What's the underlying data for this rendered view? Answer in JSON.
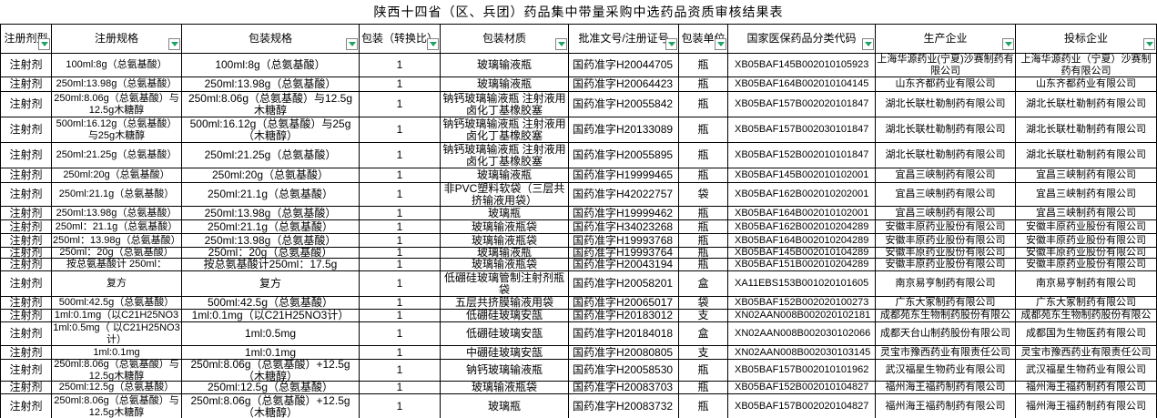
{
  "title": "陕西十四省（区、兵团）药品集中带量采购中选药品资质审核结果表",
  "columns": [
    {
      "label": "注册剂型"
    },
    {
      "label": "注册规格"
    },
    {
      "label": "包装规格"
    },
    {
      "label": "包装（转换比）"
    },
    {
      "label": "包装材质"
    },
    {
      "label": "批准文号/注册证号"
    },
    {
      "label": "包装单位"
    },
    {
      "label": "国家医保药品分类代码"
    },
    {
      "label": "生产企业"
    },
    {
      "label": "投标企业"
    }
  ],
  "icons": {
    "header_filter": "filter-dropdown-arrow"
  },
  "colors": {
    "filter_arrow": "#1fa463",
    "grid_line": "#000000",
    "text": "#000000",
    "background": "#ffffff"
  },
  "rows": [
    {
      "cells": [
        "注射剂",
        "100ml:8g（总氨基酸）",
        "100ml:8g（总氨基酸）",
        "1",
        "玻璃输液瓶",
        "国药准字H20044705",
        "瓶",
        "XB05BAF145B002010105923",
        "上海华源药业(宁夏)沙赛制药有限公司",
        "上海华源药业（宁夏）沙赛制药有限公司"
      ]
    },
    {
      "cells": [
        "注射剂",
        "250ml:13.98g（总氨基酸）",
        "250ml:13.98g（总氨基酸）",
        "1",
        "玻璃输液瓶",
        "国药准字H20064423",
        "瓶",
        "XB05BAF164B002010104145",
        "山东齐都药业有限公司",
        "山东齐都药业有限公司"
      ]
    },
    {
      "cells": [
        "注射剂",
        "250ml:8.06g（总氨基酸）与12.5g木糖醇",
        "250ml:8.06g（总氨基酸）与12.5g木糖醇",
        "1",
        "钠钙玻璃输液瓶 注射液用卤化丁基橡胶塞",
        "国药准字H20055842",
        "瓶",
        "XB05BAF157B002020101847",
        "湖北长联杜勒制药有限公司",
        "湖北长联杜勒制药有限公司"
      ]
    },
    {
      "cells": [
        "注射剂",
        "500ml:16.12g（总氨基酸）与25g木糖醇",
        "500ml:16.12g（总氨基酸）与25g（木糖醇）",
        "1",
        "钠钙玻璃输液瓶 注射液用卤化丁基橡胶塞",
        "国药准字H20133089",
        "瓶",
        "XB05BAF157B002030101847",
        "湖北长联杜勒制药有限公司",
        "湖北长联杜勒制药有限公司"
      ]
    },
    {
      "cells": [
        "注射剂",
        "250ml:21.25g（总氨基酸）",
        "250ml:21.25g（总氨基酸）",
        "1",
        "钠钙玻璃输液瓶 注射液用卤化丁基橡胶塞",
        "国药准字H20055895",
        "瓶",
        "XB05BAF152B002010101847",
        "湖北长联杜勒制药有限公司",
        "湖北长联杜勒制药有限公司"
      ]
    },
    {
      "cells": [
        "注射剂",
        "250ml:20g（总氨基酸）",
        "250ml:20g（总氨基酸）",
        "1",
        "玻璃输液瓶",
        "国药准字H19999465",
        "瓶",
        "XB05BAF145B002010102001",
        "宜昌三峡制药有限公司",
        "宜昌三峡制药有限公司"
      ]
    },
    {
      "cells": [
        "注射剂",
        "250ml:21.1g（总氨基酸）",
        "250ml:21.1g（总氨基酸）",
        "1",
        "非PVC塑料软袋（三层共挤输液用袋）",
        "国药准字H42022757",
        "袋",
        "XB05BAF162B002010202001",
        "宜昌三峡制药有限公司",
        "宜昌三峡制药有限公司"
      ]
    },
    {
      "cells": [
        "注射剂",
        "250ml:13.98g（总氨基酸）",
        "250ml:13.98g（总氨基酸）",
        "1",
        "玻璃瓶",
        "国药准字H19999462",
        "瓶",
        "XB05BAF164B002010102001",
        "宜昌三峡制药有限公司",
        "宜昌三峡制药有限公司"
      ]
    },
    {
      "cells": [
        "注射剂",
        "250ml：21.1g（总氨基酸）",
        "250ml:21.1g（总氨基酸）",
        "1",
        "玻璃输液瓶袋",
        "国药准字H34023268",
        "瓶",
        "XB05BAF162B002010204289",
        "安徽丰原药业股份有限公司",
        "安徽丰原药业股份有限公司"
      ]
    },
    {
      "cells": [
        "注射剂",
        "250ml：13.98g（总氨基酸）",
        "250ml:13.98g（总氨基酸）",
        "1",
        "玻璃输液瓶袋",
        "国药准字H19993768",
        "瓶",
        "XB05BAF164B002010204289",
        "安徽丰原药业股份有限公司",
        "安徽丰原药业股份有限公司"
      ]
    },
    {
      "cells": [
        "注射剂",
        "250ml：20g（总氨基酸）",
        "250ml：20g（总氨基酸）",
        "1",
        "玻璃输液瓶",
        "国药准字H19993764",
        "瓶",
        "XB05BAF145B002010104289",
        "安徽丰原药业股份有限公司",
        "安徽丰原药业股份有限公司"
      ]
    },
    {
      "cells": [
        "注射剂",
        "按总氨基酸计 250ml：",
        "按总氨基酸计250ml：17.5g",
        "1",
        "玻璃输液瓶袋",
        "国药准字H20043194",
        "瓶",
        "XB05BAF151B002010204289",
        "安徽丰原药业股份有限公司",
        "安徽丰原药业股份有限公司"
      ]
    },
    {
      "cells": [
        "注射剂",
        "复方",
        "复方",
        "1",
        "低硼硅玻璃管制注射剂瓶袋",
        "国药准字H20058201",
        "盒",
        "XA11EBS153B001020101605",
        "南京易亨制药有限公司",
        "南京易亨制药有限公司"
      ]
    },
    {
      "cells": [
        "注射剂",
        "500ml:42.5g（总氨基酸）",
        "500ml:42.5g（总氨基酸）",
        "1",
        "五层共挤膜输液用袋",
        "国药准字H20065017",
        "袋",
        "XB05BAF152B002020100273",
        "广东大冢制药有限公司",
        "广东大冢制药有限公司"
      ]
    },
    {
      "cells": [
        "注射剂",
        "1ml:0.1mg（以C21H25NO3",
        "1ml:0.1mg（以C21H25NO3计）",
        "1",
        "低硼硅玻璃安瓿",
        "国药准字H20183012",
        "支",
        "XN02AAN008B002020102181",
        "成都苑东生物制药股份有限公",
        "成都苑东生物制药股份有限公"
      ]
    },
    {
      "cells": [
        "注射剂",
        "1ml:0.5mg（ 以C21H25NO3计）",
        "1ml:0.5mg",
        "1",
        "低硼硅玻璃安瓿",
        "国药准字H20184018",
        "盒",
        "XN02AAN008B002030102066",
        "成都天台山制药股份有限公司",
        "成都国为生物医药有限公司"
      ]
    },
    {
      "cells": [
        "注射剂",
        "1ml:0.1mg",
        "1ml:0.1mg",
        "1",
        "中硼硅玻璃安瓿",
        "国药准字H20080805",
        "支",
        "XN02AAN008B002030103145",
        "灵宝市豫西药业有限责任公司",
        "灵宝市豫西药业有限责任公司"
      ]
    },
    {
      "cells": [
        "注射剂",
        "250ml:8.06g（总氨基酸）与12.5g木糖醇",
        "250ml:8.06g（总氨基酸）+12.5g（木糖醇）",
        "1",
        "钠钙玻璃输液瓶",
        "国药准字H20058530",
        "瓶",
        "XB05BAF157B002010101962",
        "武汉福星生物药业有限公司",
        "武汉福星生物药业有限公司"
      ]
    },
    {
      "cells": [
        "注射剂",
        "250ml:12.5g（总氨基酸）",
        "250ml:12.5g（总氨基酸）",
        "1",
        "玻璃输液瓶袋",
        "国药准字H20083703",
        "瓶",
        "XB05BAF152B002010104827",
        "福州海王福药制药有限公司",
        "福州海王福药制药有限公司"
      ]
    },
    {
      "cells": [
        "注射剂",
        "250ml:8.06g（总氨基酸）与12.5g木糖醇",
        "250ml:8.06g（总氨基酸）+12.5g（木糖醇）",
        "1",
        "玻璃瓶",
        "国药准字H20083732",
        "瓶",
        "XB05BAF157B002020104827",
        "福州海王福药制药有限公司",
        "福州海王福药制药有限公司"
      ]
    }
  ]
}
